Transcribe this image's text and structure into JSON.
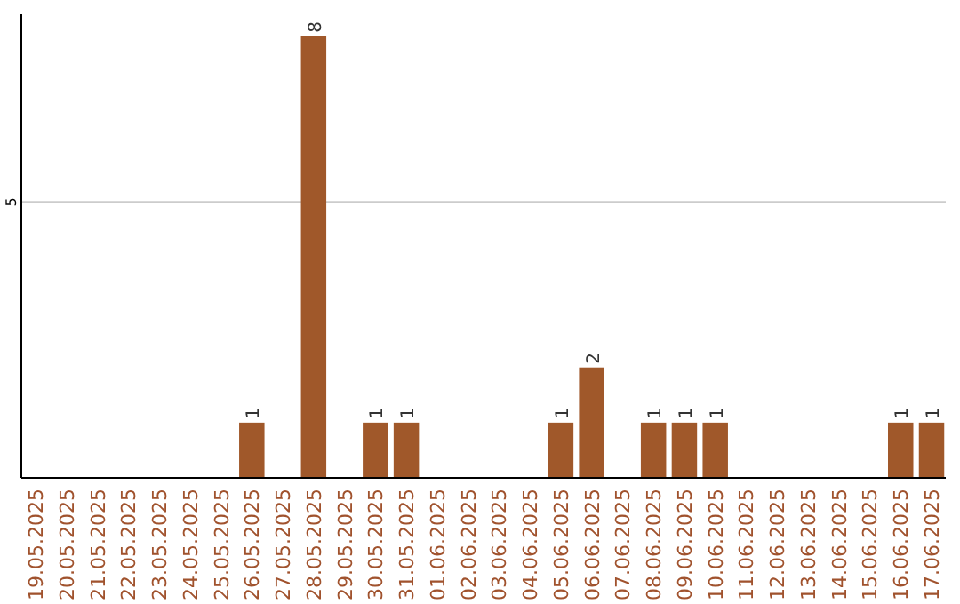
{
  "chart_data": {
    "type": "bar",
    "categories": [
      "19.05.2025",
      "20.05.2025",
      "21.05.2025",
      "22.05.2025",
      "23.05.2025",
      "24.05.2025",
      "25.05.2025",
      "26.05.2025",
      "27.05.2025",
      "28.05.2025",
      "29.05.2025",
      "30.05.2025",
      "31.05.2025",
      "01.06.2025",
      "02.06.2025",
      "03.06.2025",
      "04.06.2025",
      "05.06.2025",
      "06.06.2025",
      "07.06.2025",
      "08.06.2025",
      "09.06.2025",
      "10.06.2025",
      "11.06.2025",
      "12.06.2025",
      "13.06.2025",
      "14.06.2025",
      "15.06.2025",
      "16.06.2025",
      "17.06.2025"
    ],
    "values": [
      0,
      0,
      0,
      0,
      0,
      0,
      0,
      1,
      0,
      8,
      0,
      1,
      1,
      0,
      0,
      0,
      0,
      1,
      2,
      0,
      1,
      1,
      1,
      0,
      0,
      0,
      0,
      0,
      1,
      1
    ],
    "color": "#a0582a",
    "ylim": [
      0,
      8.4
    ],
    "yticks": [
      5
    ],
    "grid": "y",
    "value_labels": [
      null,
      null,
      null,
      null,
      null,
      null,
      null,
      "1",
      null,
      "8",
      null,
      "1",
      "1",
      null,
      null,
      null,
      null,
      "1",
      "2",
      null,
      "1",
      "1",
      "1",
      null,
      null,
      null,
      null,
      null,
      "1",
      "1"
    ]
  }
}
